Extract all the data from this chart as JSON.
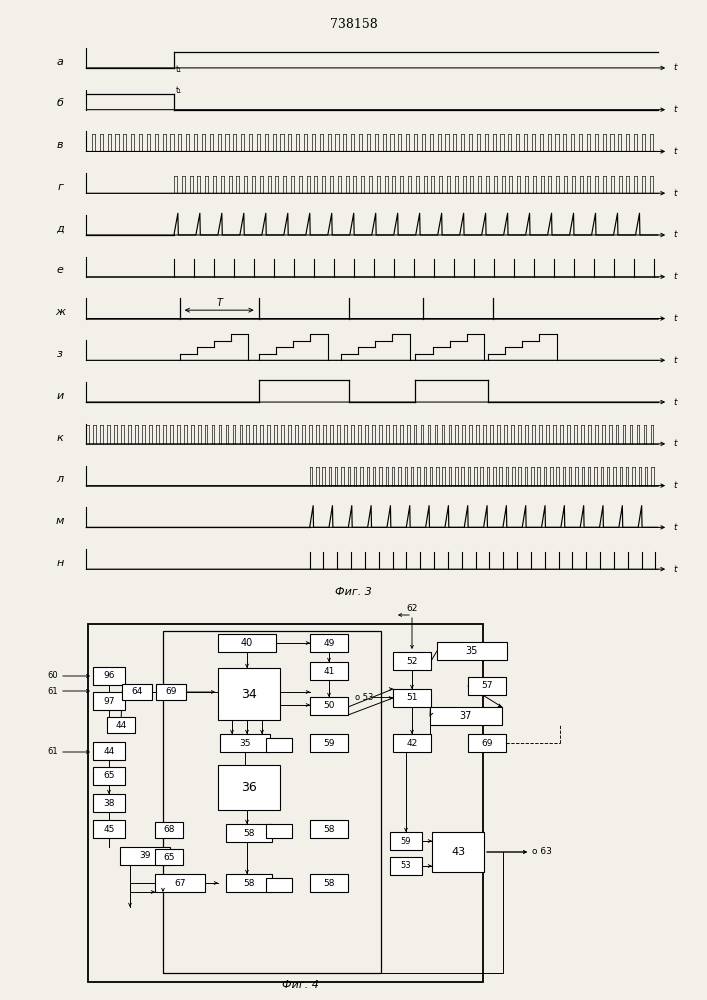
{
  "title": "738158",
  "fig3_label": "Фиг. 3",
  "fig4_label": "Фиг. 4",
  "bg_color": "#f2f0e8",
  "waveform_labels": [
    "а",
    "б",
    "в",
    "г",
    "д",
    "е",
    "ж",
    "з",
    "и",
    "к",
    "л",
    "м",
    "н"
  ]
}
